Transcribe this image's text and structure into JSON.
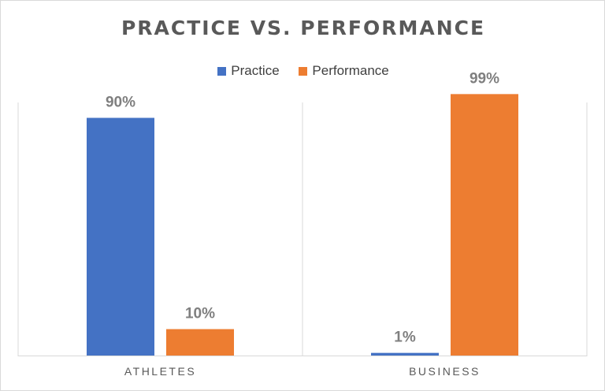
{
  "chart_data": {
    "type": "bar",
    "title": "PRACTICE VS. PERFORMANCE",
    "categories": [
      "ATHLETES",
      "BUSINESS"
    ],
    "series": [
      {
        "name": "Practice",
        "values": [
          90,
          1
        ],
        "labels": [
          "90%",
          "1%"
        ],
        "color": "#4472c4"
      },
      {
        "name": "Performance",
        "values": [
          10,
          99
        ],
        "labels": [
          "10%",
          "99%"
        ],
        "color": "#ed7d31"
      }
    ],
    "xlabel": "",
    "ylabel": "",
    "ylim": [
      0,
      100
    ],
    "grid": "vertical category separators",
    "legend_position": "top-center"
  }
}
